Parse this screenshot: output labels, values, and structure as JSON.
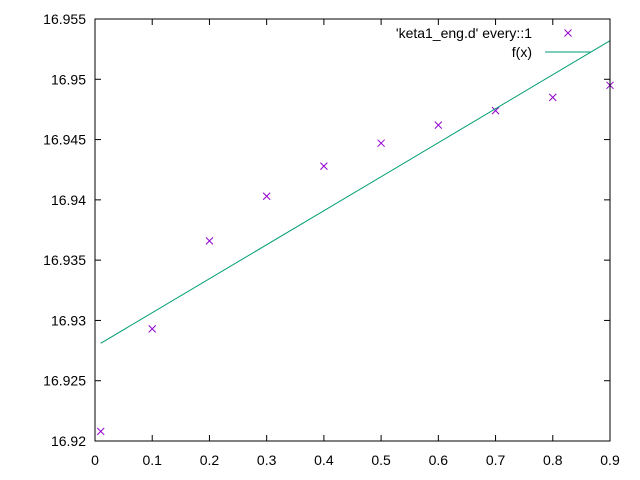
{
  "chart_data": {
    "type": "scatter",
    "title": "",
    "xlabel": "",
    "ylabel": "",
    "xlim": [
      0,
      0.9
    ],
    "ylim": [
      16.92,
      16.955
    ],
    "x_ticks": [
      "0",
      "0.1",
      "0.2",
      "0.3",
      "0.4",
      "0.5",
      "0.6",
      "0.7",
      "0.8",
      "0.9"
    ],
    "y_ticks": [
      "16.92",
      "16.925",
      "16.93",
      "16.935",
      "16.94",
      "16.945",
      "16.95",
      "16.955"
    ],
    "grid": false,
    "legend_position": "top-right",
    "series": [
      {
        "name": "'keta1_eng.d' every::1",
        "kind": "points",
        "marker": "x",
        "color": "#9400d3",
        "x": [
          0.01,
          0.1,
          0.2,
          0.3,
          0.4,
          0.5,
          0.6,
          0.7,
          0.8,
          0.9
        ],
        "y": [
          16.9208,
          16.9293,
          16.9366,
          16.9403,
          16.9428,
          16.9447,
          16.9462,
          16.9474,
          16.9485,
          16.9495
        ]
      },
      {
        "name": "f(x)",
        "kind": "line",
        "color": "#009e73",
        "x": [
          0.01,
          0.9
        ],
        "y": [
          16.9281,
          16.9532
        ]
      }
    ]
  }
}
